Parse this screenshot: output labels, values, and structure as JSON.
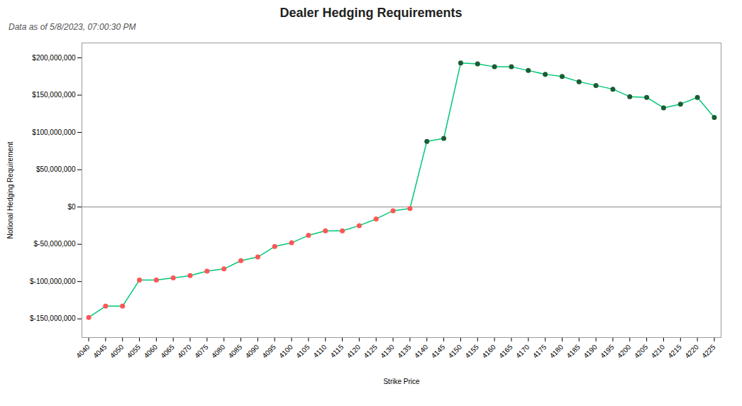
{
  "chart_data": {
    "type": "line",
    "title": "Dealer Hedging Requirements",
    "subtitle": "Data as of 5/8/2023, 07:00:30 PM",
    "xlabel": "Strike Price",
    "ylabel": "Notional Hedging Requirement",
    "x": [
      4040,
      4045,
      4050,
      4055,
      4060,
      4065,
      4070,
      4075,
      4080,
      4085,
      4090,
      4095,
      4100,
      4105,
      4110,
      4115,
      4120,
      4125,
      4130,
      4135,
      4140,
      4145,
      4150,
      4155,
      4160,
      4165,
      4170,
      4175,
      4180,
      4185,
      4190,
      4195,
      4200,
      4205,
      4210,
      4215,
      4220,
      4225
    ],
    "values": [
      -148000000,
      -133000000,
      -133000000,
      -98000000,
      -98000000,
      -95000000,
      -92000000,
      -86000000,
      -83000000,
      -72000000,
      -67000000,
      -53000000,
      -48000000,
      -38000000,
      -32000000,
      -32000000,
      -25000000,
      -16000000,
      -5000000,
      -2000000,
      88000000,
      92000000,
      193000000,
      192000000,
      188000000,
      188000000,
      183000000,
      178000000,
      175000000,
      168000000,
      163000000,
      158000000,
      148000000,
      147000000,
      133000000,
      138000000,
      147000000,
      120000000
    ],
    "color": "#00c878",
    "colors": [
      "#ff5555",
      "#ff5555",
      "#ff5555",
      "#ff5555",
      "#ff5555",
      "#ff5555",
      "#ff5555",
      "#ff5555",
      "#ff5555",
      "#ff5555",
      "#ff5555",
      "#ff5555",
      "#ff5555",
      "#ff5555",
      "#ff5555",
      "#ff5555",
      "#ff5555",
      "#ff5555",
      "#ff5555",
      "#ff5555",
      "#1a5c33",
      "#1a5c33",
      "#1a5c33",
      "#1a5c33",
      "#1a5c33",
      "#1a5c33",
      "#1a5c33",
      "#1a5c33",
      "#1a5c33",
      "#1a5c33",
      "#1a5c33",
      "#1a5c33",
      "#1a5c33",
      "#1a5c33",
      "#1a5c33",
      "#1a5c33",
      "#1a5c33",
      "#1a5c33"
    ],
    "marker": "circle",
    "xlim": [
      4038,
      4227
    ],
    "xticks": [
      4040,
      4045,
      4050,
      4055,
      4060,
      4065,
      4070,
      4075,
      4080,
      4085,
      4090,
      4095,
      4100,
      4105,
      4110,
      4115,
      4120,
      4125,
      4130,
      4135,
      4140,
      4145,
      4150,
      4155,
      4160,
      4165,
      4170,
      4175,
      4180,
      4185,
      4190,
      4195,
      4200,
      4205,
      4210,
      4215,
      4220,
      4225
    ],
    "ylim": [
      -175000000,
      220000000
    ],
    "yticks": [
      {
        "value": -150000000,
        "label": "$-150,000,000"
      },
      {
        "value": -100000000,
        "label": "$-100,000,000"
      },
      {
        "value": -50000000,
        "label": "$-50,000,000"
      },
      {
        "value": 0,
        "label": "$0"
      },
      {
        "value": 50000000,
        "label": "$50,000,000"
      },
      {
        "value": 100000000,
        "label": "$100,000,000"
      },
      {
        "value": 150000000,
        "label": "$150,000,000"
      },
      {
        "value": 200000000,
        "label": "$200,000,000"
      }
    ],
    "grid": false
  }
}
